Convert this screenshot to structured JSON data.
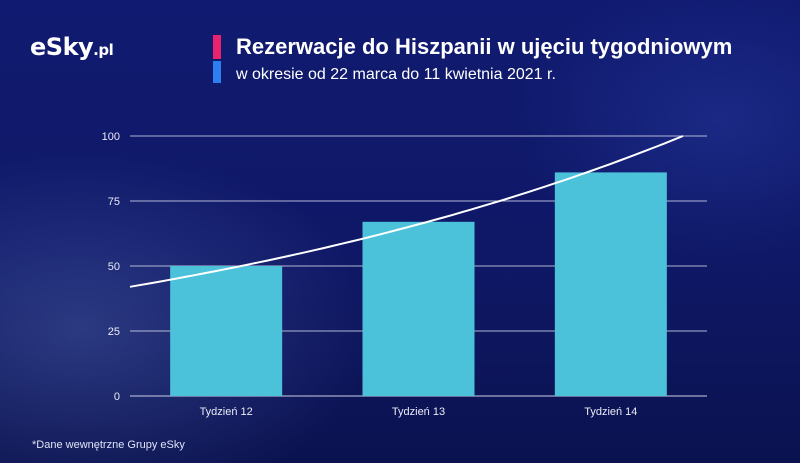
{
  "brand": {
    "logo_main": "eSky",
    "logo_suffix": ".pl"
  },
  "header": {
    "title": "Rezerwacje do Hiszpanii w ujęciu tygodniowym",
    "subtitle": "w okresie od 22 marca do 11 kwietnia 2021 r.",
    "accent_colors": [
      "#e8246e",
      "#2d7ff0"
    ]
  },
  "footnote": "*Dane wewnętrzne Grupy eSky",
  "chart_data": {
    "type": "bar",
    "categories": [
      "Tydzień 12",
      "Tydzień 13",
      "Tydzień 14"
    ],
    "values": [
      50,
      67,
      86
    ],
    "trendline": {
      "type": "exponential",
      "start": 42,
      "end": 100
    },
    "ylim": [
      0,
      100
    ],
    "yticks": [
      0,
      25,
      50,
      75,
      100
    ],
    "grid": true,
    "bar_color": "#4bc2da",
    "trend_color": "#ffffff",
    "background_color": "#0f1866"
  }
}
